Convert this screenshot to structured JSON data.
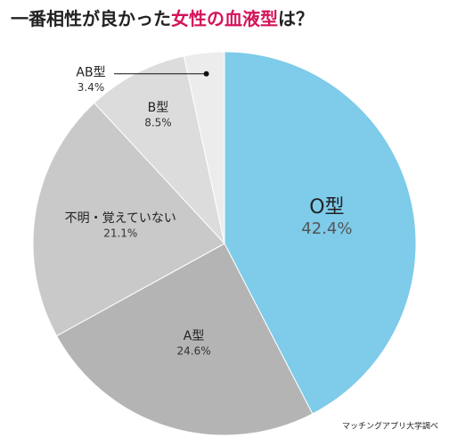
{
  "chart_data": {
    "type": "pie",
    "title": [
      "一番相性が良かった",
      "女性の血液型",
      "は？"
    ],
    "categories": [
      "O型",
      "A型",
      "不明・覚えていない",
      "B型",
      "AB型"
    ],
    "values": [
      42.4,
      24.6,
      21.1,
      8.5,
      3.4
    ],
    "value_labels": [
      "42.4%",
      "24.6%",
      "21.1%",
      "8.5%",
      "3.4%"
    ],
    "colors": [
      "#7ecbea",
      "#b4b4b4",
      "#c9c9c9",
      "#dcdcdc",
      "#ececec"
    ],
    "source": "マッチングアプリ大学調べ"
  }
}
